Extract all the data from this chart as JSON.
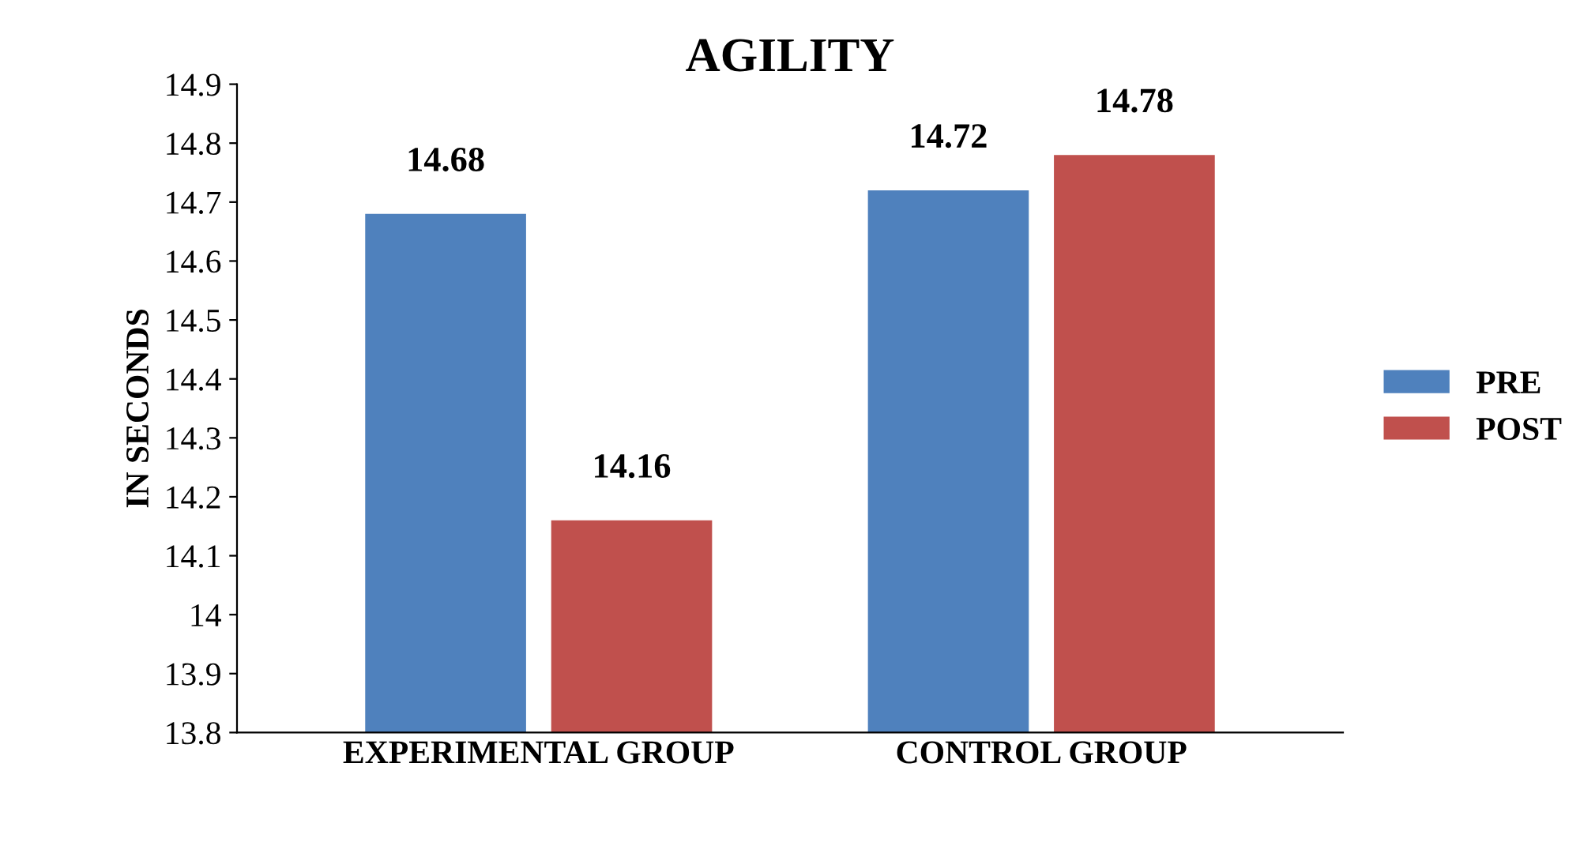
{
  "chart_data": {
    "type": "bar",
    "title": "AGILITY",
    "ylabel": "IN SECONDS",
    "categories": [
      "EXPERIMENTAL GROUP",
      "CONTROL GROUP"
    ],
    "series": [
      {
        "name": "PRE",
        "color": "#4f81bd",
        "values": [
          14.68,
          14.72
        ]
      },
      {
        "name": "POST",
        "color": "#c0504d",
        "values": [
          14.16,
          14.78
        ]
      }
    ],
    "ylim": [
      13.8,
      14.9
    ],
    "yticks": [
      13.8,
      13.9,
      14,
      14.1,
      14.2,
      14.3,
      14.4,
      14.5,
      14.6,
      14.7,
      14.8,
      14.9
    ],
    "data_labels": true,
    "legend": "right",
    "grid": false
  }
}
